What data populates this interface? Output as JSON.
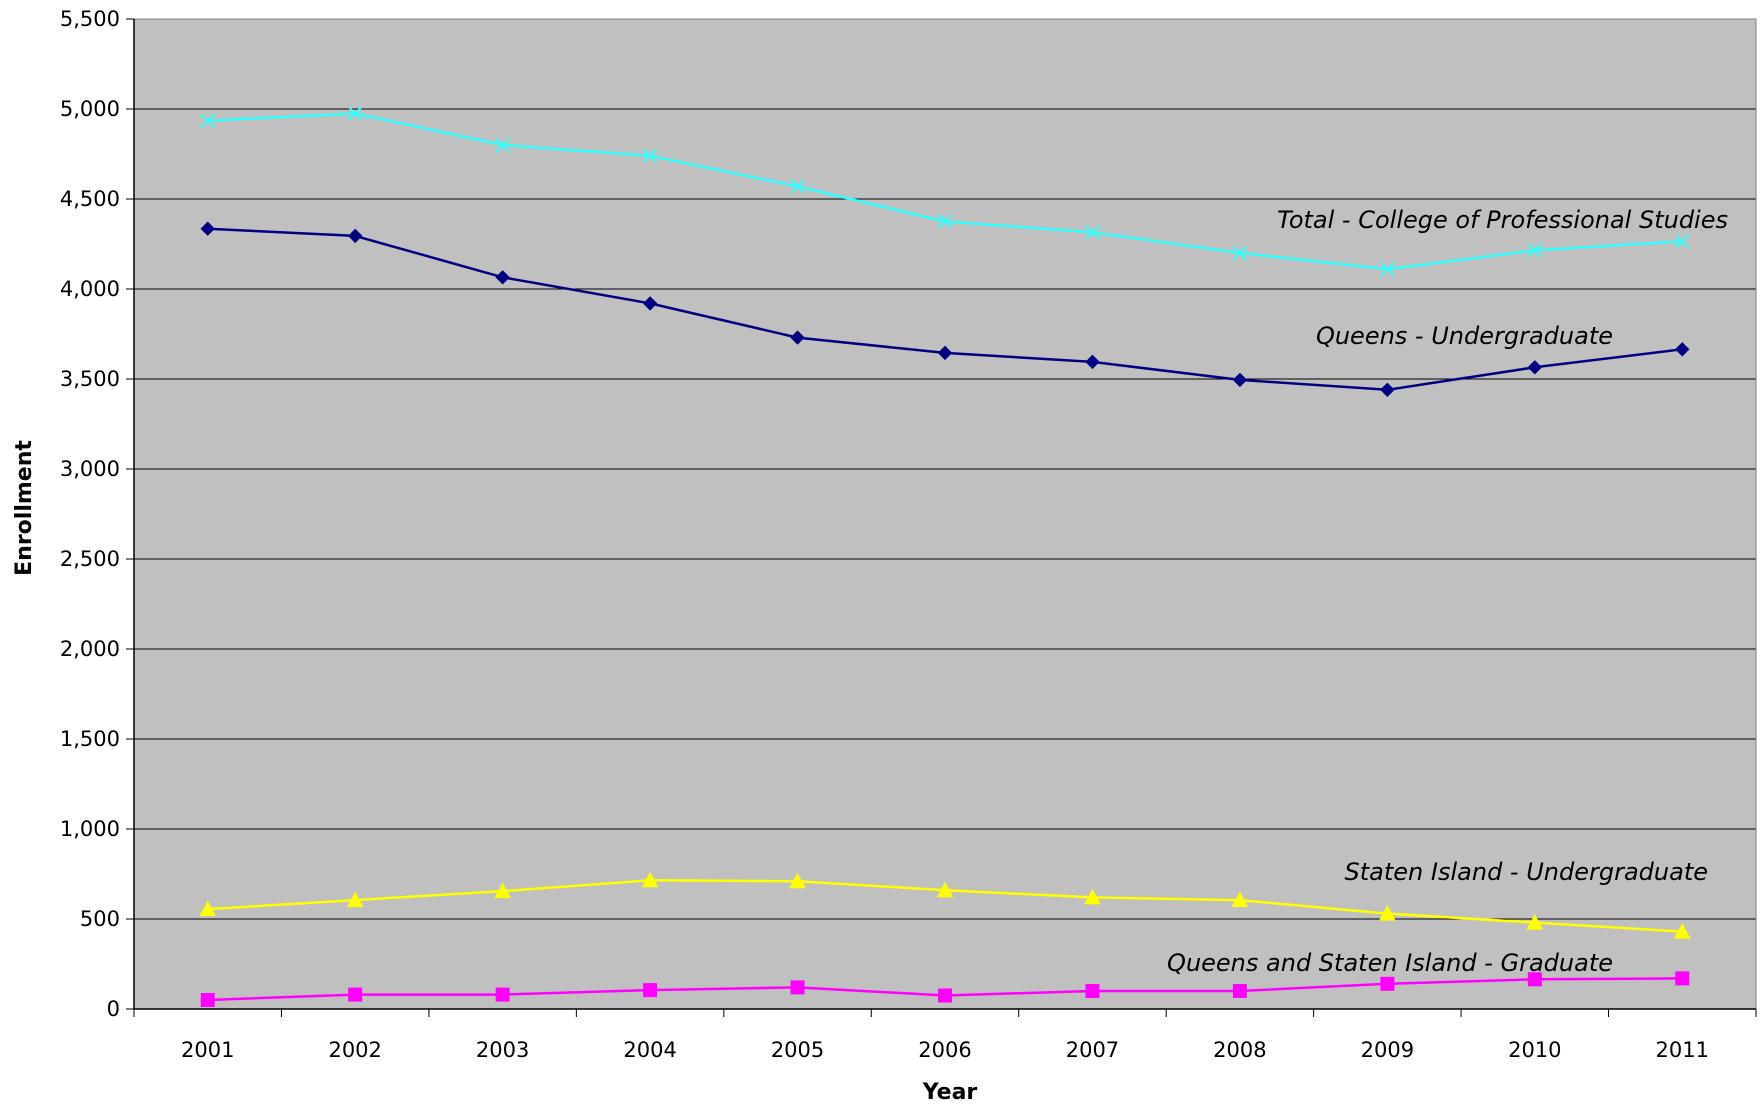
{
  "chart_data": {
    "type": "line",
    "title": "",
    "xlabel": "Year",
    "ylabel": "Enrollment",
    "x": [
      "2001",
      "2002",
      "2003",
      "2004",
      "2005",
      "2006",
      "2007",
      "2008",
      "2009",
      "2010",
      "2011"
    ],
    "ylim": [
      0,
      5500
    ],
    "yticks": [
      "0",
      "500",
      "1,000",
      "1,500",
      "2,000",
      "2,500",
      "3,000",
      "3,500",
      "4,000",
      "4,500",
      "5,000",
      "5,500"
    ],
    "grid": true,
    "plot_background": "#c0c0c0",
    "series": [
      {
        "name": "Total - College of Professional Studies",
        "color": "#33ffff",
        "marker": "x",
        "values": [
          4935,
          4975,
          4800,
          4740,
          4570,
          4375,
          4315,
          4200,
          4110,
          4215,
          4265
        ]
      },
      {
        "name": "Queens - Undergraduate",
        "color": "#000080",
        "marker": "diamond",
        "values": [
          4335,
          4295,
          4065,
          3920,
          3730,
          3645,
          3595,
          3495,
          3440,
          3565,
          3665
        ]
      },
      {
        "name": "Staten Island - Undergraduate",
        "color": "#ffff00",
        "marker": "triangle",
        "values": [
          555,
          605,
          655,
          715,
          710,
          660,
          620,
          605,
          530,
          480,
          430
        ]
      },
      {
        "name": "Queens and Staten Island - Graduate",
        "color": "#ff00ff",
        "marker": "square",
        "values": [
          50,
          80,
          80,
          105,
          120,
          75,
          100,
          100,
          140,
          165,
          170
        ]
      }
    ]
  }
}
